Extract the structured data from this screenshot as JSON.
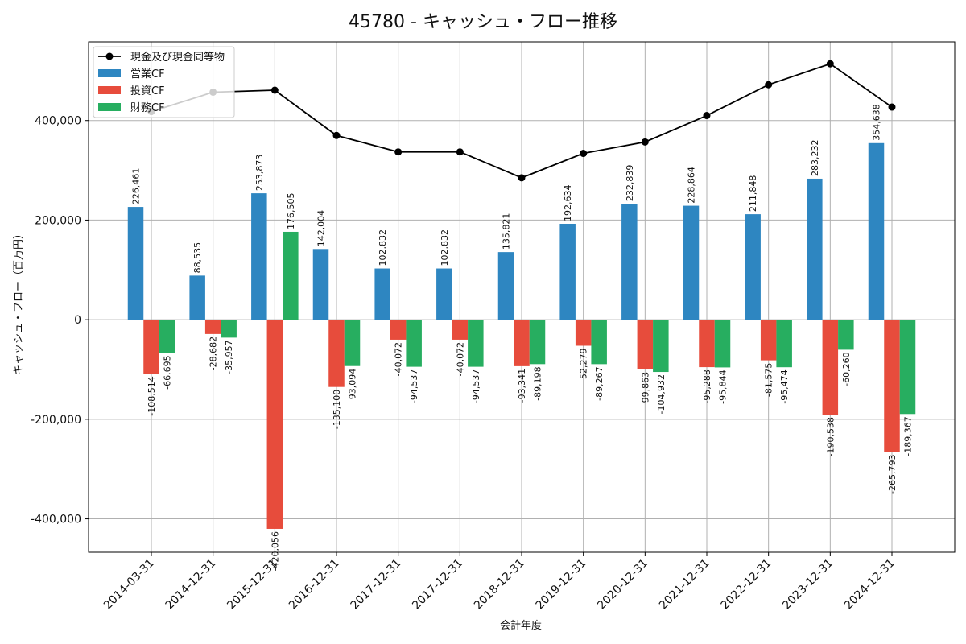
{
  "chart_data": {
    "type": "bar",
    "title": "45780 - キャッシュ・フロー推移",
    "xlabel": "会計年度",
    "ylabel": "キャッシュ・フロー（百万円）",
    "categories": [
      "2014-03-31",
      "2014-12-31",
      "2015-12-31",
      "2016-12-31",
      "2017-12-31",
      "2017-12-31",
      "2018-12-31",
      "2019-12-31",
      "2020-12-31",
      "2021-12-31",
      "2022-12-31",
      "2023-12-31",
      "2024-12-31"
    ],
    "series": [
      {
        "name": "営業CF",
        "kind": "bar",
        "color": "#2e86c1",
        "values": [
          226461,
          88535,
          253873,
          142004,
          102832,
          102832,
          135821,
          192634,
          232839,
          228864,
          211848,
          283232,
          354638
        ]
      },
      {
        "name": "投資CF",
        "kind": "bar",
        "color": "#e74c3c",
        "values": [
          -108514,
          -28682,
          -420056,
          -135100,
          -40072,
          -40072,
          -93341,
          -52279,
          -99863,
          -95288,
          -81575,
          -190538,
          -265793
        ]
      },
      {
        "name": "財務CF",
        "kind": "bar",
        "color": "#27ae60",
        "values": [
          -66695,
          -35957,
          176505,
          -93094,
          -94537,
          -94537,
          -89198,
          -89267,
          -104932,
          -95844,
          -95474,
          -60260,
          -189367
        ]
      },
      {
        "name": "現金及び現金同等物",
        "kind": "line",
        "color": "#000000",
        "values": [
          418000,
          457000,
          461000,
          370000,
          337000,
          337000,
          285000,
          334000,
          357000,
          410000,
          472000,
          514000,
          427000
        ]
      }
    ],
    "ylim": [
      -467000,
      558000
    ],
    "yticks": [
      -400000,
      -200000,
      0,
      200000,
      400000
    ],
    "grid": true,
    "legend": "top-left"
  }
}
